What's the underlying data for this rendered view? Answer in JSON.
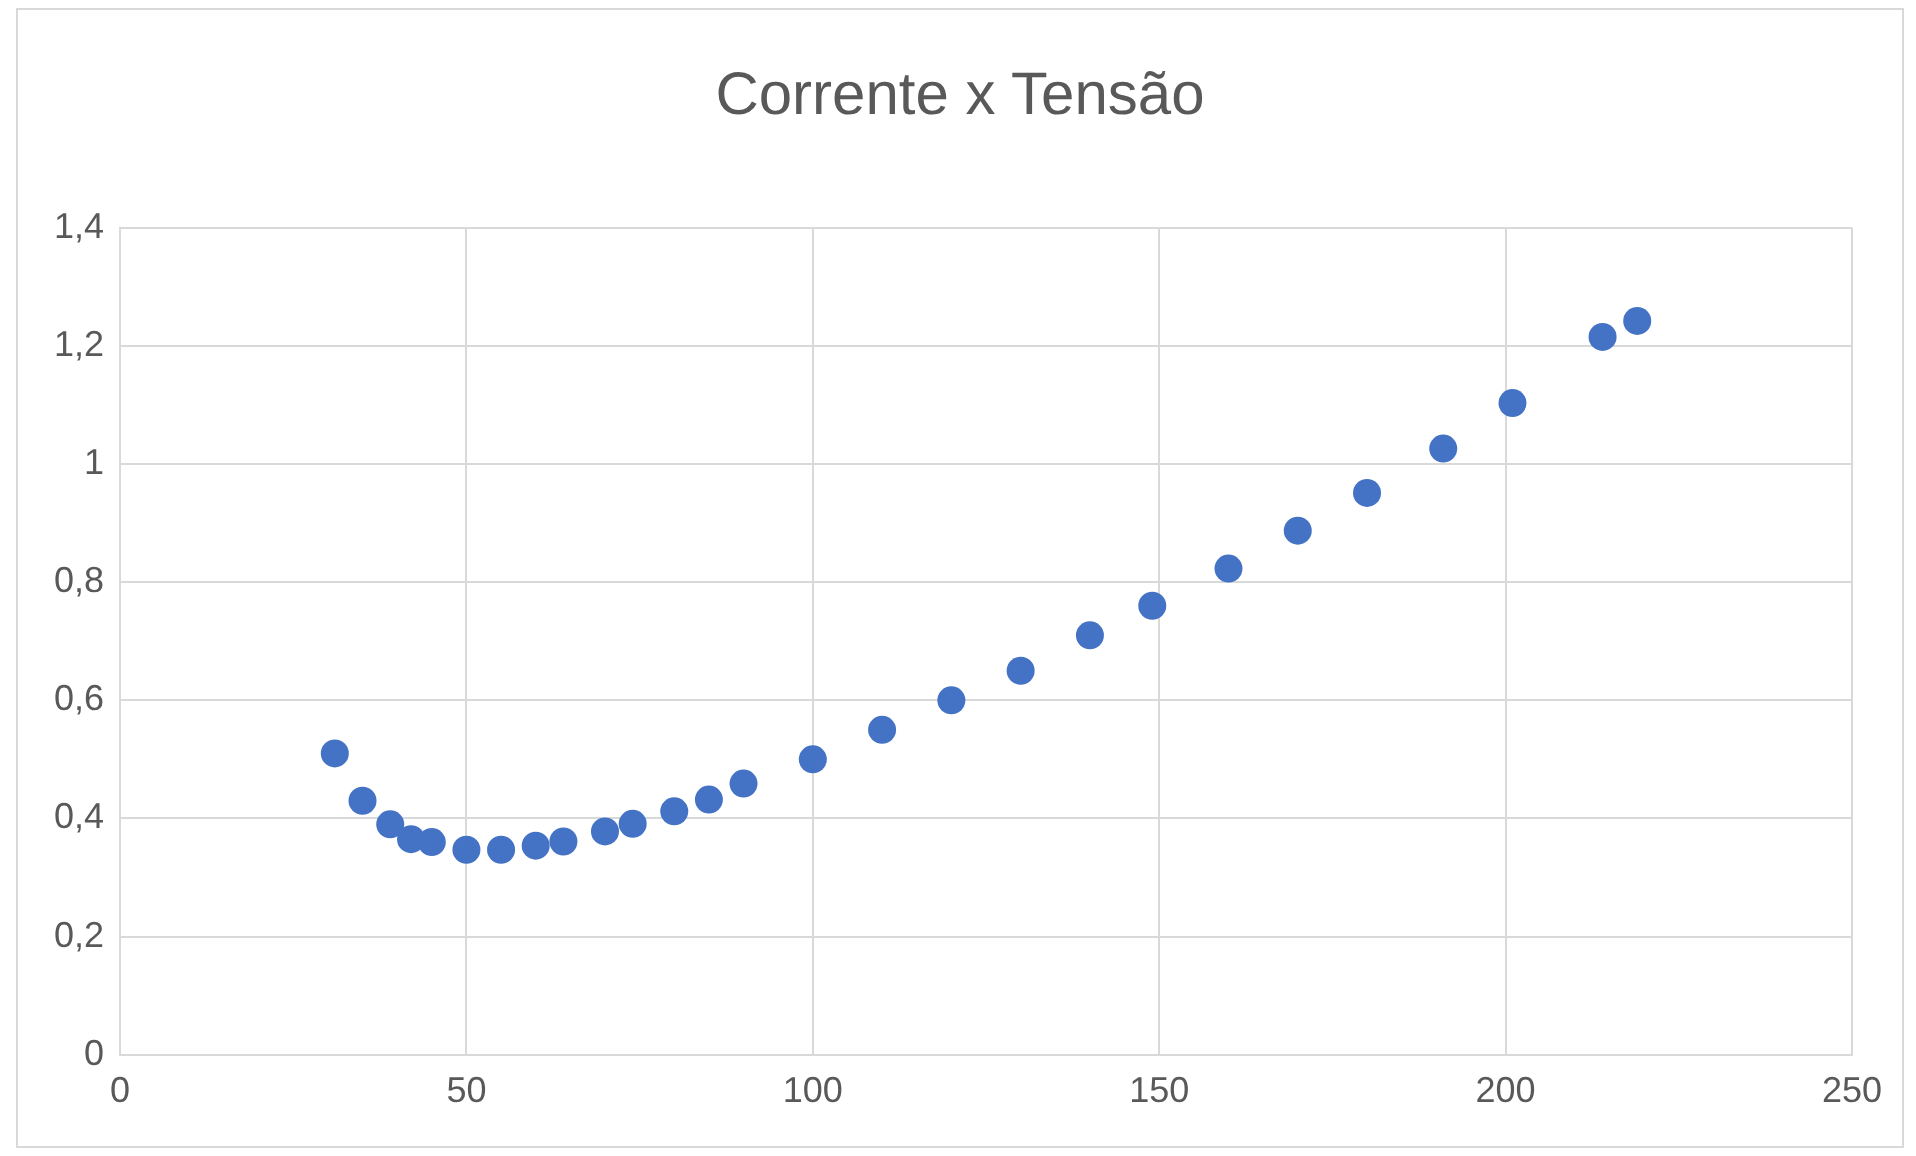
{
  "chart_data": {
    "type": "scatter",
    "title": "Corrente x Tensão",
    "x": [
      31,
      35,
      39,
      42,
      45,
      50,
      55,
      60,
      64,
      70,
      74,
      80,
      85,
      90,
      100,
      110,
      120,
      130,
      140,
      149,
      160,
      170,
      180,
      191,
      201,
      214,
      219
    ],
    "series": [
      {
        "color": "#4472c4",
        "values": [
          0.51,
          0.43,
          0.39,
          0.365,
          0.36,
          0.347,
          0.347,
          0.354,
          0.361,
          0.378,
          0.391,
          0.412,
          0.432,
          0.459,
          0.5,
          0.55,
          0.6,
          0.65,
          0.71,
          0.76,
          0.823,
          0.887,
          0.951,
          1.026,
          1.103,
          1.215,
          1.242
        ]
      }
    ],
    "xlim": [
      0,
      250
    ],
    "xticks": [
      0,
      50,
      100,
      150,
      200,
      250
    ],
    "ylim": [
      0,
      1.4
    ],
    "yticks": [
      0,
      {
        "value": 0.2,
        "label": "0,2"
      },
      {
        "value": 0.4,
        "label": "0,4"
      },
      {
        "value": 0.6,
        "label": "0,6"
      },
      {
        "value": 0.8,
        "label": "0,8"
      },
      1,
      {
        "value": 1.2,
        "label": "1,2"
      },
      {
        "value": 1.4,
        "label": "1,4"
      }
    ],
    "grid": true,
    "legend": false,
    "marker": "circle"
  }
}
